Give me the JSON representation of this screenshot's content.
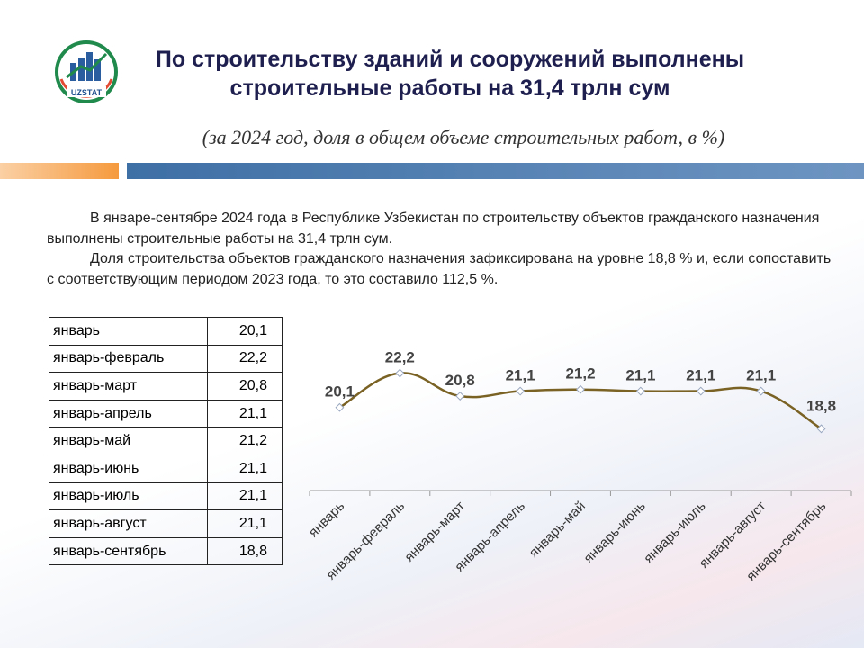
{
  "header": {
    "logo_text": "UZSTAT",
    "title_line1": "По строительству зданий и сооружений выполнены",
    "title_line2": "строительные работы на 31,4 трлн сум",
    "subtitle": "(за 2024 год, доля в общем объеме строительных работ, в %)"
  },
  "text": {
    "p1": "В январе-сентябре 2024 года в Республике Узбекистан по строительству объектов гражданского назначения выполнены строительные работы на 31,4 трлн сум.",
    "p2": "Доля строительства объектов гражданского назначения зафиксирована на уровне 18,8 % и, если сопоставить с соответствующим периодом 2023 года, то это составило 112,5 %."
  },
  "table": {
    "rows": [
      {
        "label": "январь",
        "value": "20,1"
      },
      {
        "label": "январь-февраль",
        "value": "22,2"
      },
      {
        "label": "январь-март",
        "value": "20,8"
      },
      {
        "label": "январь-апрель",
        "value": "21,1"
      },
      {
        "label": "январь-май",
        "value": "21,2"
      },
      {
        "label": "январь-июнь",
        "value": "21,1"
      },
      {
        "label": "январь-июль",
        "value": "21,1"
      },
      {
        "label": "январь-август",
        "value": "21,1"
      },
      {
        "label": "январь-сентябрь",
        "value": "18,8"
      }
    ]
  },
  "chart_data": {
    "type": "line",
    "categories": [
      "январь",
      "январь-февраль",
      "январь-март",
      "январь-апрель",
      "январь-май",
      "январь-июнь",
      "январь-июль",
      "январь-август",
      "январь-сентябрь"
    ],
    "values": [
      20.1,
      22.2,
      20.8,
      21.1,
      21.2,
      21.1,
      21.1,
      21.1,
      18.8
    ],
    "data_labels": [
      "20,1",
      "22,2",
      "20,8",
      "21,1",
      "21,2",
      "21,1",
      "21,1",
      "21,1",
      "18,8"
    ],
    "ylim": [
      17.5,
      23.0
    ],
    "line_color": "#7a6224",
    "grid": false,
    "legend": "none"
  }
}
